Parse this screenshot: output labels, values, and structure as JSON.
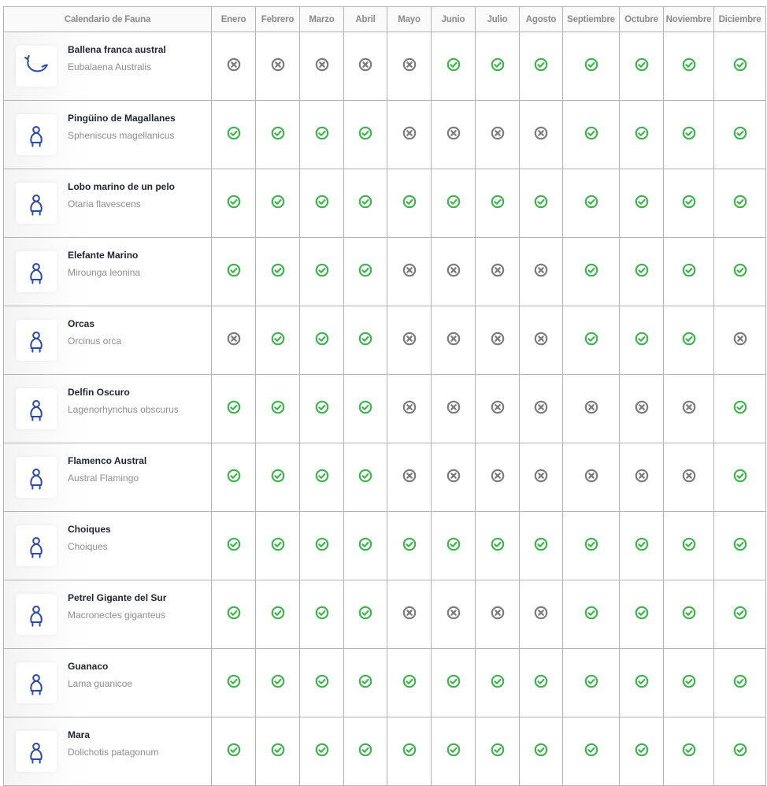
{
  "header": {
    "title": "Calendario de Fauna"
  },
  "months": [
    "Enero",
    "Febrero",
    "Marzo",
    "Abril",
    "Mayo",
    "Junio",
    "Julio",
    "Agosto",
    "Septiembre",
    "Octubre",
    "Noviembre",
    "Diciembre"
  ],
  "colors": {
    "available": "#3cb44b",
    "unavailable": "#7a7a7a",
    "icon": "#2b4aa6"
  },
  "animals": [
    {
      "name": "Ballena franca austral",
      "scientific": "Eubalaena Australis",
      "icon": "whale-icon",
      "availability": [
        0,
        0,
        0,
        0,
        0,
        1,
        1,
        1,
        1,
        1,
        1,
        1
      ]
    },
    {
      "name": "Pingüino de Magallanes",
      "scientific": "Spheniscus magellanicus",
      "icon": "penguin-icon",
      "availability": [
        1,
        1,
        1,
        1,
        0,
        0,
        0,
        0,
        1,
        1,
        1,
        1
      ]
    },
    {
      "name": "Lobo marino de un pelo",
      "scientific": "Otaria flavescens",
      "icon": "sea-lion-icon",
      "availability": [
        1,
        1,
        1,
        1,
        1,
        1,
        1,
        1,
        1,
        1,
        1,
        1
      ]
    },
    {
      "name": "Elefante Marino",
      "scientific": "Mirounga leonina",
      "icon": "elephant-seal-icon",
      "availability": [
        1,
        1,
        1,
        1,
        0,
        0,
        0,
        0,
        1,
        1,
        1,
        1
      ]
    },
    {
      "name": "Orcas",
      "scientific": "Orcinus orca",
      "icon": "orca-icon",
      "availability": [
        0,
        1,
        1,
        1,
        0,
        0,
        0,
        0,
        1,
        1,
        1,
        0
      ]
    },
    {
      "name": "Delfin Oscuro",
      "scientific": "Lagenorhynchus obscurus",
      "icon": "dolphin-icon",
      "availability": [
        1,
        1,
        1,
        1,
        0,
        0,
        0,
        0,
        0,
        0,
        0,
        1
      ]
    },
    {
      "name": "Flamenco Austral",
      "scientific": "Austral Flamingo",
      "icon": "flamingo-icon",
      "availability": [
        1,
        1,
        1,
        1,
        0,
        0,
        0,
        0,
        0,
        0,
        0,
        1
      ]
    },
    {
      "name": "Choiques",
      "scientific": "Choiques",
      "icon": "rhea-icon",
      "availability": [
        1,
        1,
        1,
        1,
        1,
        1,
        1,
        1,
        1,
        1,
        1,
        1
      ]
    },
    {
      "name": "Petrel Gigante del Sur",
      "scientific": "Macronectes giganteus",
      "icon": "petrel-icon",
      "availability": [
        1,
        1,
        1,
        1,
        0,
        0,
        0,
        0,
        1,
        1,
        1,
        1
      ]
    },
    {
      "name": "Guanaco",
      "scientific": "Lama guanicoe",
      "icon": "guanaco-icon",
      "availability": [
        1,
        1,
        1,
        1,
        1,
        1,
        1,
        1,
        1,
        1,
        1,
        1
      ]
    },
    {
      "name": "Mara",
      "scientific": "Dolichotis patagonum",
      "icon": "mara-icon",
      "availability": [
        1,
        1,
        1,
        1,
        1,
        1,
        1,
        1,
        1,
        1,
        1,
        1
      ]
    }
  ]
}
